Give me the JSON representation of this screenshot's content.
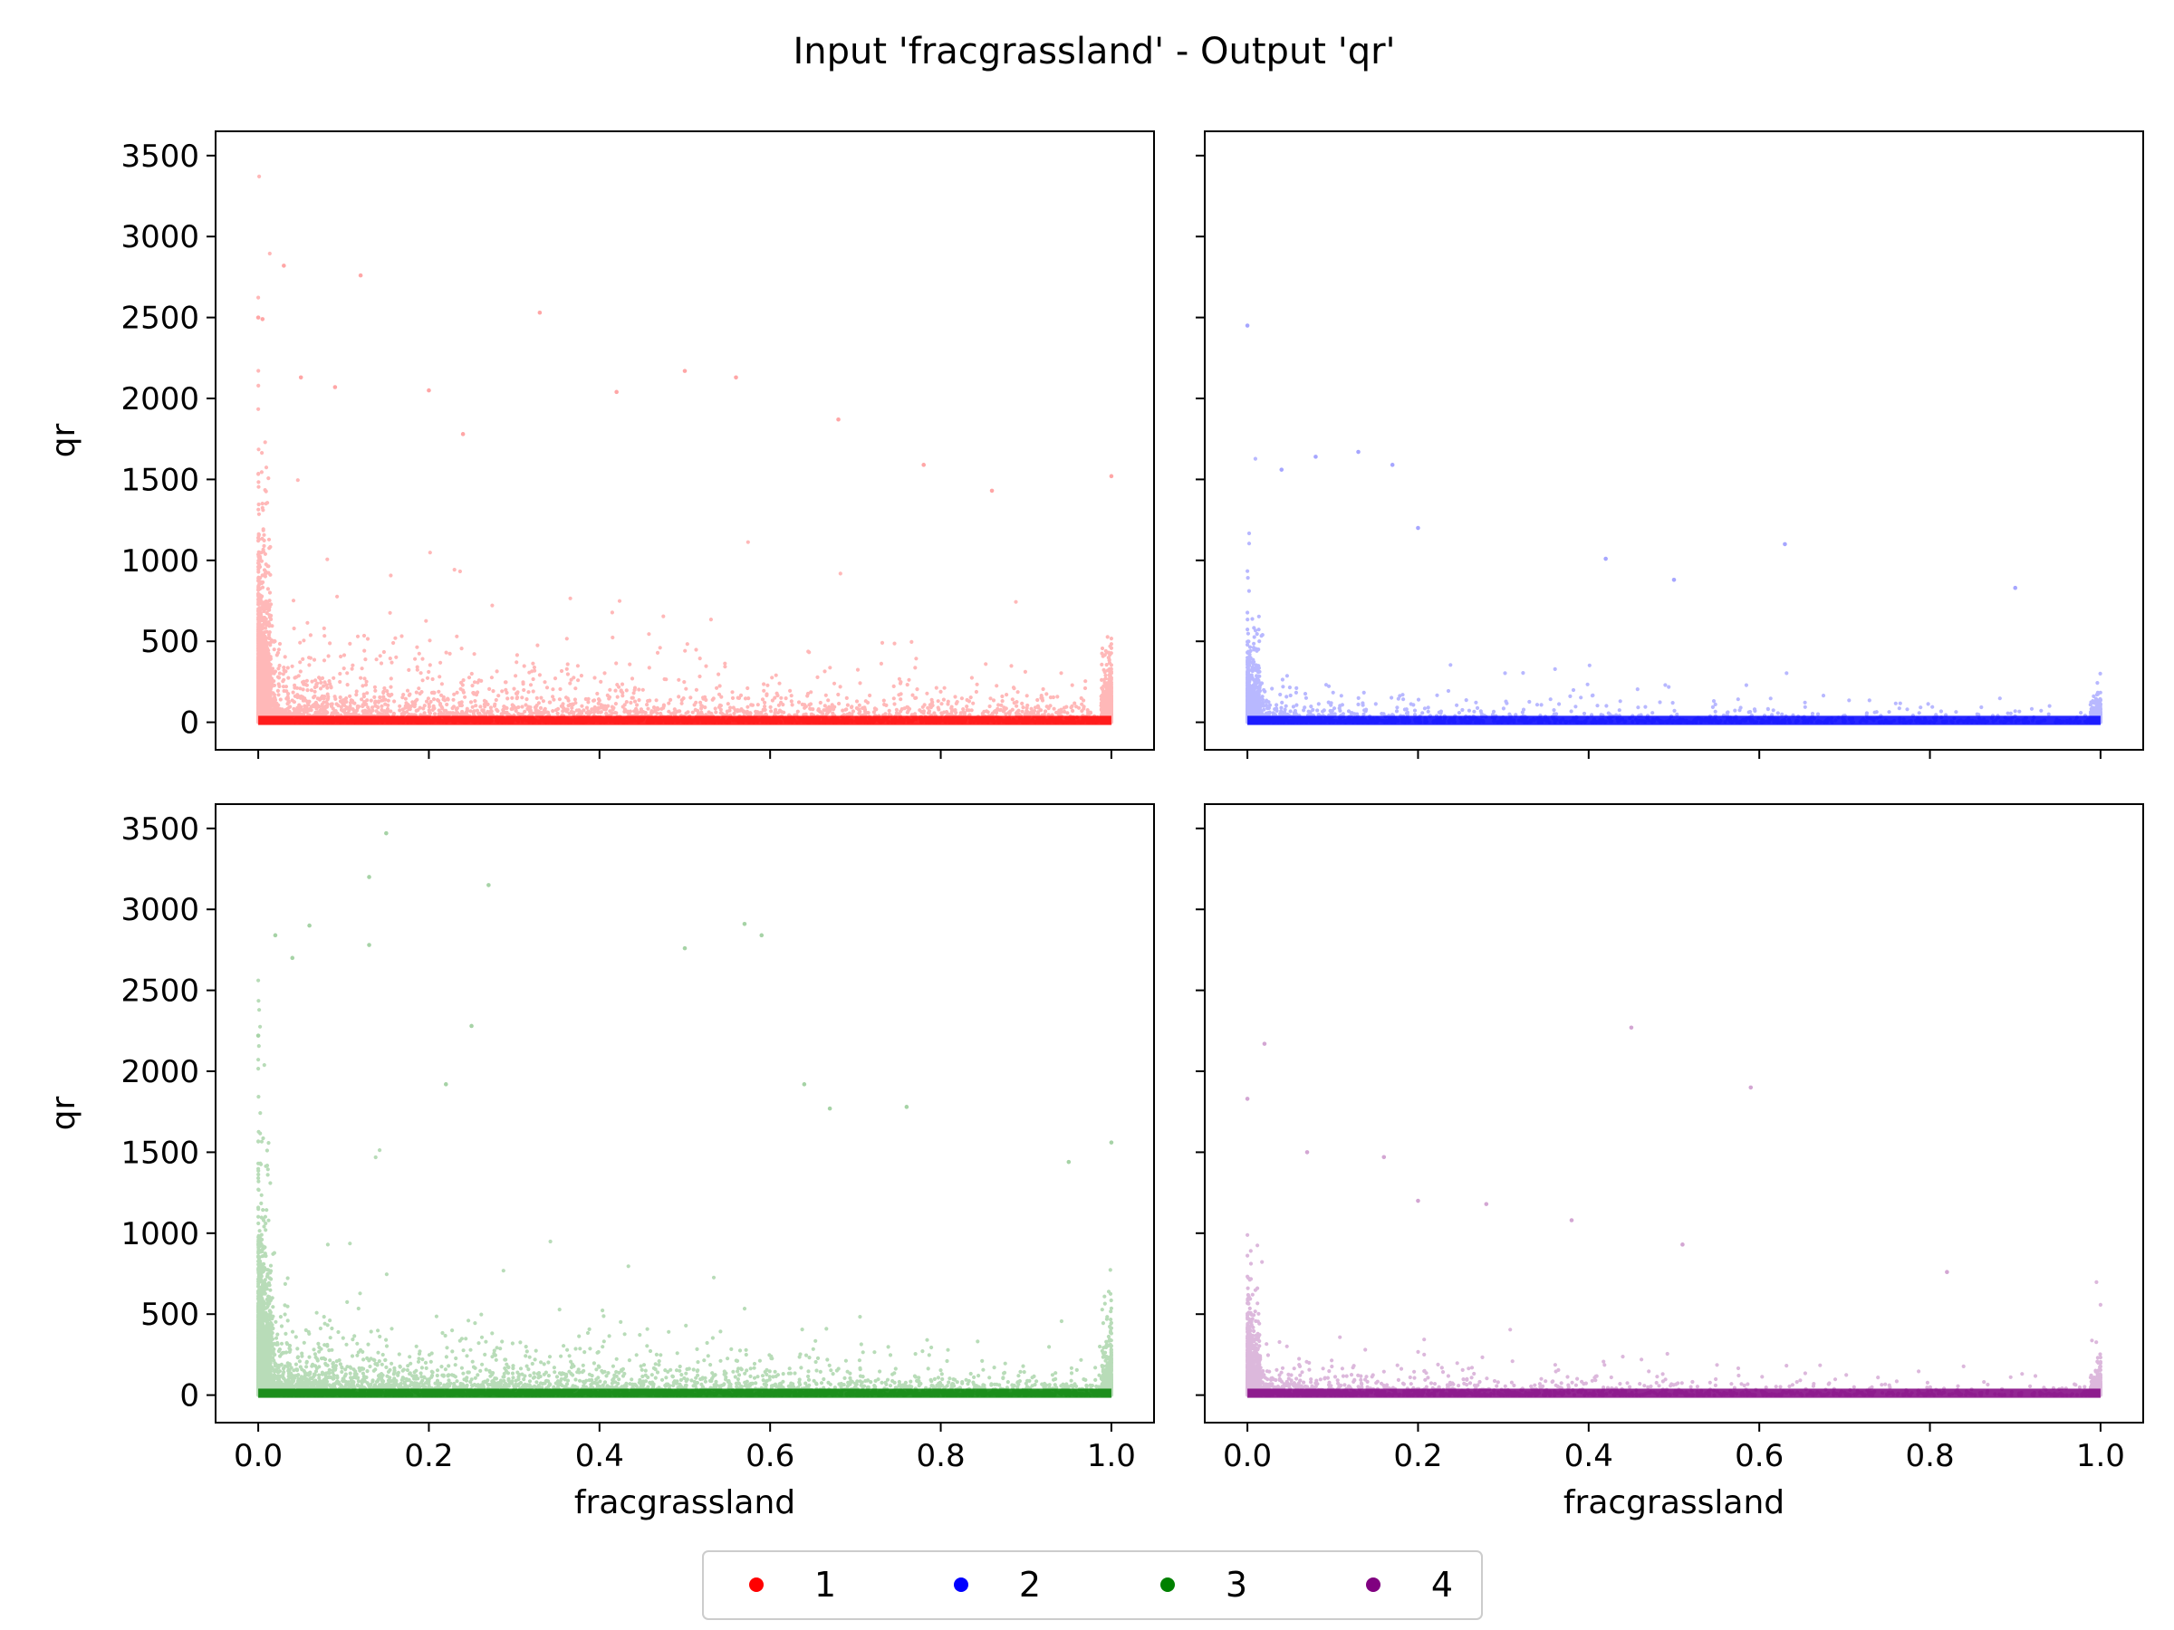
{
  "figure": {
    "title": "Input 'fracgrassland' - Output 'qr'"
  },
  "chart_data": [
    {
      "type": "scatter",
      "panel": "top-left",
      "series_label": "1",
      "color": "#ff0000",
      "xlabel": "",
      "ylabel": "qr",
      "xlim": [
        -0.05,
        1.05
      ],
      "ylim": [
        -170,
        3650
      ],
      "xticks": [
        "0.0",
        "0.2",
        "0.4",
        "0.6",
        "0.8",
        "1.0"
      ],
      "yticks": [
        "0",
        "500",
        "1000",
        "1500",
        "2000",
        "2500",
        "3000",
        "3500"
      ],
      "x_tick_labels_visible": false,
      "y_tick_labels_visible": true,
      "outliers": [
        [
          0.0,
          2500
        ],
        [
          0.005,
          2490
        ],
        [
          0.03,
          2820
        ],
        [
          0.12,
          2760
        ],
        [
          0.33,
          2530
        ],
        [
          0.5,
          2170
        ],
        [
          0.56,
          2130
        ],
        [
          0.42,
          2040
        ],
        [
          0.2,
          2050
        ],
        [
          0.05,
          2130
        ],
        [
          0.09,
          2070
        ],
        [
          0.68,
          1870
        ],
        [
          0.78,
          1590
        ],
        [
          0.86,
          1430
        ],
        [
          1.0,
          1520
        ],
        [
          0.24,
          1780
        ]
      ]
    },
    {
      "type": "scatter",
      "panel": "top-right",
      "series_label": "2",
      "color": "#0000ff",
      "xlabel": "",
      "ylabel": "",
      "xlim": [
        -0.05,
        1.05
      ],
      "ylim": [
        -170,
        3650
      ],
      "xticks": [
        "0.0",
        "0.2",
        "0.4",
        "0.6",
        "0.8",
        "1.0"
      ],
      "yticks": [
        "0",
        "500",
        "1000",
        "1500",
        "2000",
        "2500",
        "3000",
        "3500"
      ],
      "x_tick_labels_visible": false,
      "y_tick_labels_visible": false,
      "outliers": [
        [
          0.0,
          2450
        ],
        [
          0.13,
          1670
        ],
        [
          0.08,
          1640
        ],
        [
          0.17,
          1590
        ],
        [
          0.04,
          1560
        ],
        [
          0.2,
          1200
        ],
        [
          0.63,
          1100
        ],
        [
          0.9,
          830
        ],
        [
          0.42,
          1010
        ],
        [
          0.5,
          880
        ]
      ]
    },
    {
      "type": "scatter",
      "panel": "bottom-left",
      "series_label": "3",
      "color": "#008000",
      "xlabel": "fracgrassland",
      "ylabel": "qr",
      "xlim": [
        -0.05,
        1.05
      ],
      "ylim": [
        -170,
        3650
      ],
      "xticks": [
        "0.0",
        "0.2",
        "0.4",
        "0.6",
        "0.8",
        "1.0"
      ],
      "yticks": [
        "0",
        "500",
        "1000",
        "1500",
        "2000",
        "2500",
        "3000",
        "3500"
      ],
      "x_tick_labels_visible": true,
      "y_tick_labels_visible": true,
      "outliers": [
        [
          0.15,
          3470
        ],
        [
          0.13,
          3200
        ],
        [
          0.27,
          3150
        ],
        [
          0.02,
          2840
        ],
        [
          0.06,
          2900
        ],
        [
          0.57,
          2910
        ],
        [
          0.59,
          2840
        ],
        [
          0.5,
          2760
        ],
        [
          0.13,
          2780
        ],
        [
          0.04,
          2700
        ],
        [
          0.25,
          2280
        ],
        [
          0.0,
          2220
        ],
        [
          0.22,
          1920
        ],
        [
          0.64,
          1920
        ],
        [
          0.67,
          1770
        ],
        [
          0.76,
          1780
        ],
        [
          0.95,
          1440
        ],
        [
          1.0,
          1560
        ]
      ]
    },
    {
      "type": "scatter",
      "panel": "bottom-right",
      "series_label": "4",
      "color": "#800080",
      "xlabel": "fracgrassland",
      "ylabel": "",
      "xlim": [
        -0.05,
        1.05
      ],
      "ylim": [
        -170,
        3650
      ],
      "xticks": [
        "0.0",
        "0.2",
        "0.4",
        "0.6",
        "0.8",
        "1.0"
      ],
      "yticks": [
        "0",
        "500",
        "1000",
        "1500",
        "2000",
        "2500",
        "3000",
        "3500"
      ],
      "x_tick_labels_visible": true,
      "y_tick_labels_visible": false,
      "outliers": [
        [
          0.45,
          2270
        ],
        [
          0.59,
          1900
        ],
        [
          0.02,
          2170
        ],
        [
          0.0,
          1830
        ],
        [
          0.07,
          1500
        ],
        [
          0.16,
          1470
        ],
        [
          0.2,
          1200
        ],
        [
          0.28,
          1180
        ],
        [
          0.38,
          1080
        ],
        [
          0.82,
          760
        ],
        [
          0.51,
          930
        ]
      ]
    }
  ],
  "legend": {
    "placement": "bottom-center",
    "items": [
      {
        "label": "1",
        "color": "#ff0000"
      },
      {
        "label": "2",
        "color": "#0000ff"
      },
      {
        "label": "3",
        "color": "#008000"
      },
      {
        "label": "4",
        "color": "#800080"
      }
    ]
  }
}
